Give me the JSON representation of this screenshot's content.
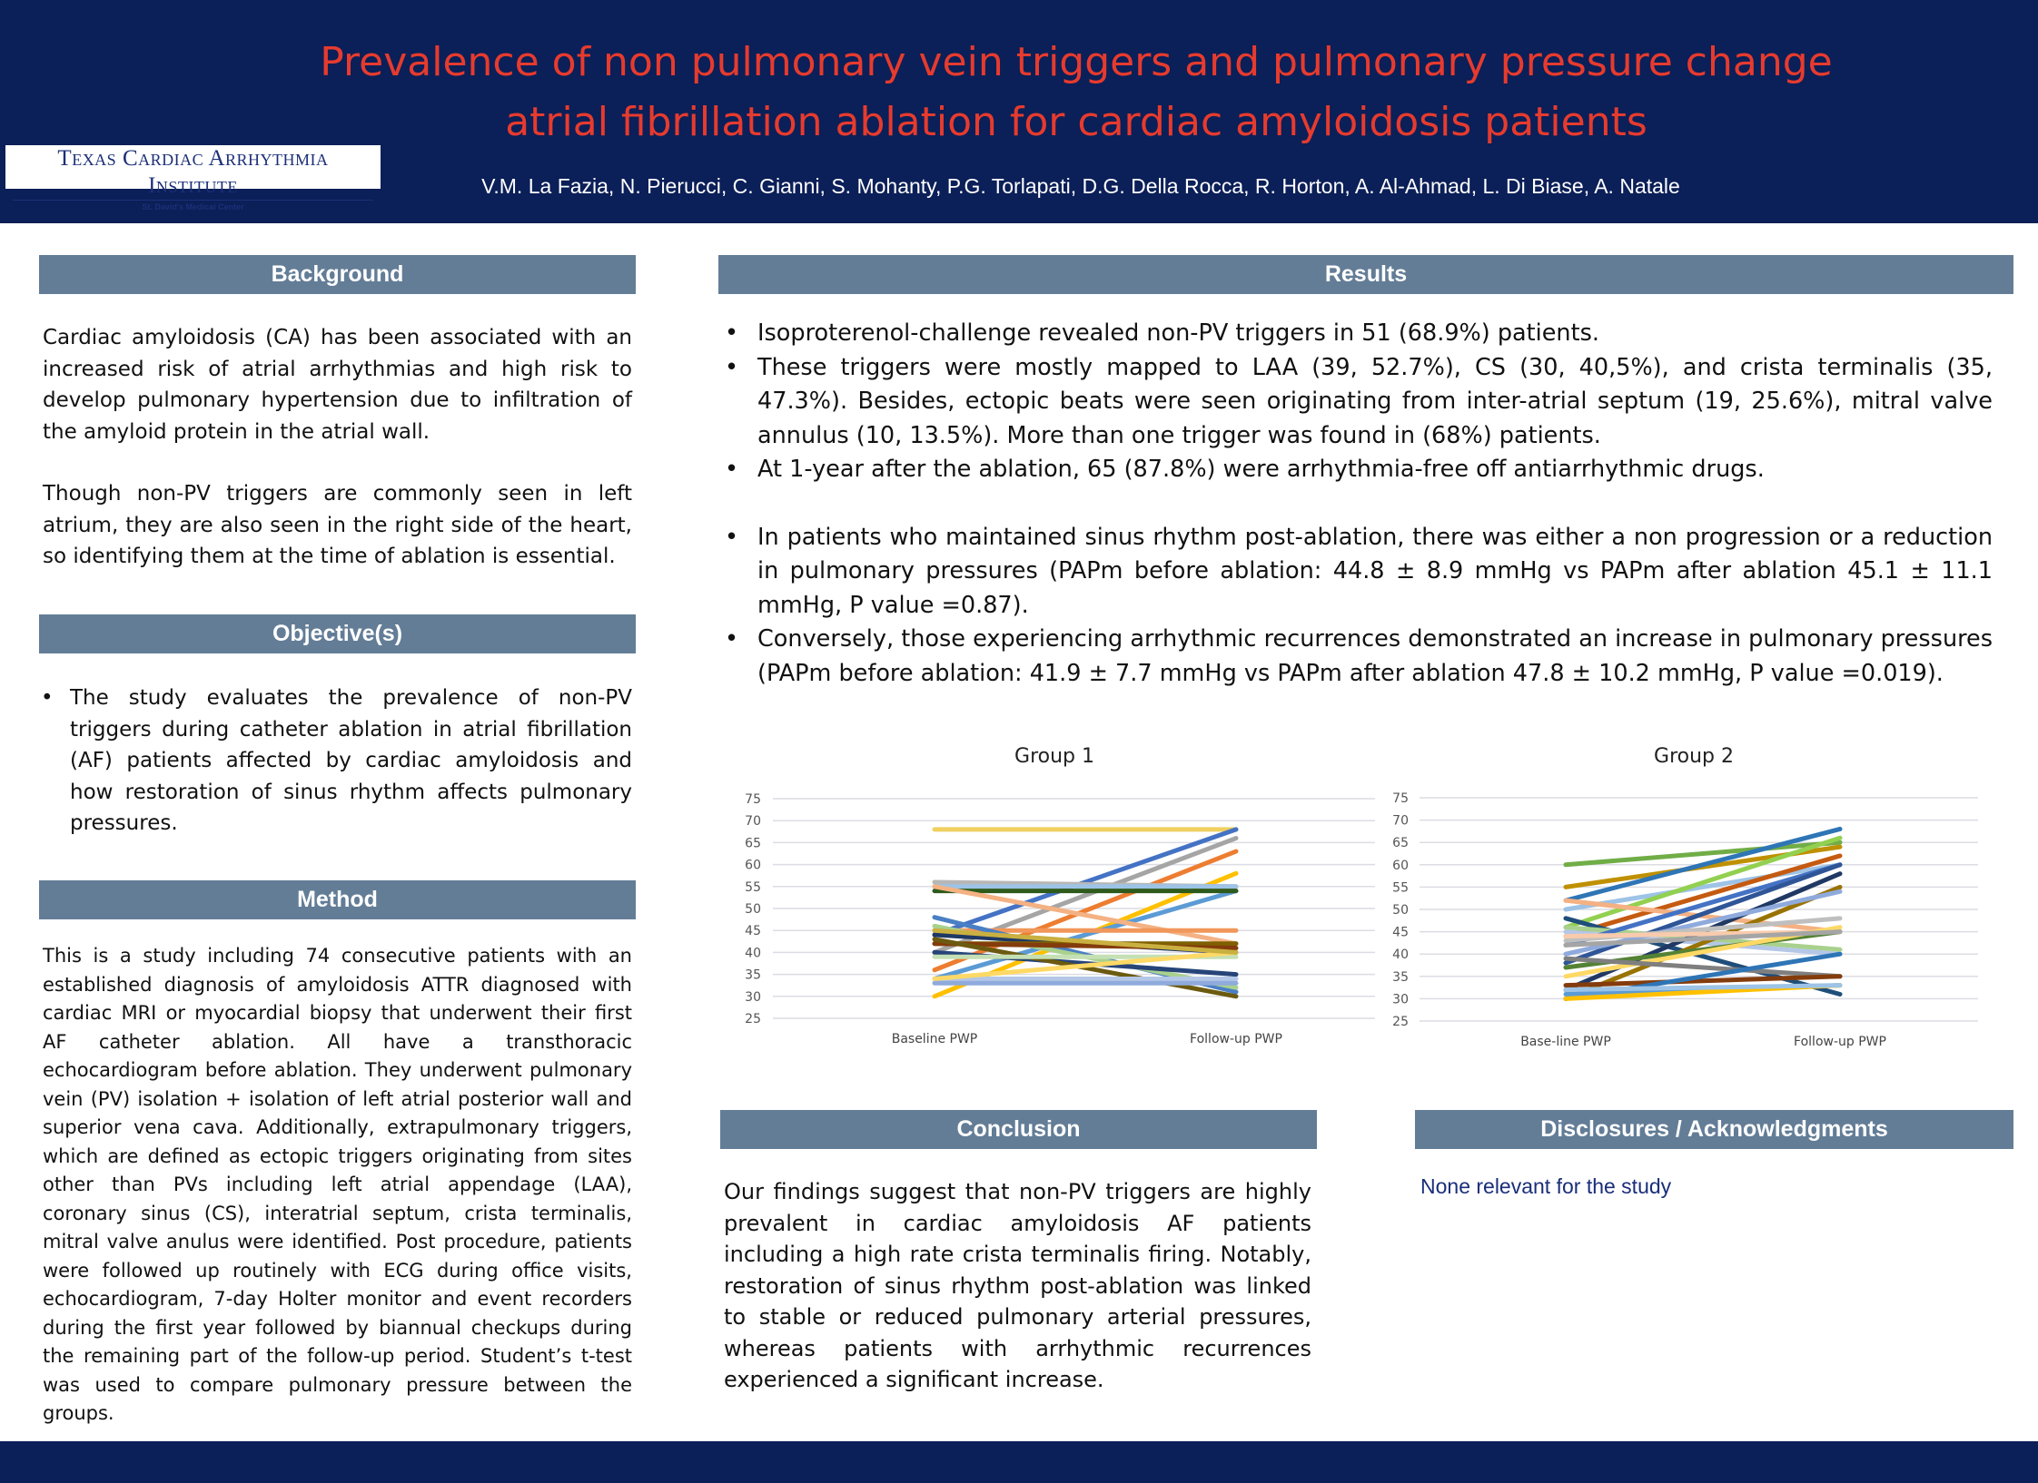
{
  "header": {
    "title_line1": "Prevalence of non pulmonary vein triggers and pulmonary pressure change",
    "title_line2": "atrial fibrillation ablation for cardiac amyloidosis patients",
    "authors": "V.M. La Fazia, N. Pierucci, C. Gianni, S. Mohanty, P.G. Torlapati, D.G. Della Rocca, R. Horton, A. Al-Ahmad, L. Di Biase, A. Natale",
    "logo_line1": "Texas Cardiac Arrhythmia Institute",
    "logo_line2": "St. David's Medical Center"
  },
  "background": {
    "heading": "Background",
    "p1": "Cardiac amyloidosis (CA) has been associated with an increased risk of atrial arrhythmias and high risk to develop pulmonary hypertension due to infiltration of the amyloid protein in the atrial wall.",
    "p2": "Though non-PV triggers are commonly seen in left atrium, they are also seen in the right side of the heart, so identifying them at the time of ablation is essential."
  },
  "objective": {
    "heading": "Objective(s)",
    "items": [
      "The study evaluates the prevalence of non-PV triggers during catheter ablation in atrial fibrillation (AF) patients affected by cardiac amyloidosis and how restoration of sinus rhythm affects pulmonary pressures."
    ]
  },
  "method": {
    "heading": "Method",
    "text": "This is a study including 74 consecutive patients with an established diagnosis of amyloidosis ATTR diagnosed with cardiac MRI or myocardial biopsy that underwent their first AF catheter ablation. All have a transthoracic echocardiogram before ablation. They underwent pulmonary vein (PV) isolation + isolation of left atrial posterior wall and superior vena cava. Additionally, extrapulmonary triggers, which are defined as ectopic triggers originating from sites other than PVs including left atrial appendage (LAA), coronary sinus (CS), interatrial septum, crista terminalis, mitral valve anulus were identified.  Post procedure, patients were followed up routinely with ECG during office visits, echocardiogram, 7-day Holter monitor and event recorders during the first year followed by biannual checkups during the remaining part of the follow-up period. Student’s t-test was used to compare pulmonary pressure between the groups."
  },
  "results": {
    "heading": "Results",
    "items": [
      "Isoproterenol-challenge revealed non-PV triggers in 51 (68.9%) patients.",
      "These triggers were mostly mapped to LAA (39, 52.7%), CS (30, 40,5%), and crista terminalis (35, 47.3%). Besides, ectopic beats were seen originating from inter-atrial septum (19, 25.6%), mitral valve annulus (10, 13.5%). More than one trigger was found in (68%) patients.",
      "At 1-year after the ablation, 65 (87.8%) were arrhythmia-free off antiarrhythmic drugs.",
      "In patients who maintained sinus rhythm post-ablation, there was either a non progression or a reduction in pulmonary pressures (PAPm before ablation: 44.8 ± 8.9 mmHg vs PAPm after ablation 45.1 ± 11.1 mmHg, P value =0.87).",
      "Conversely, those experiencing arrhythmic recurrences demonstrated an increase in pulmonary pressures (PAPm before ablation: 41.9 ± 7.7 mmHg vs PAPm after ablation 47.8 ± 10.2 mmHg, P value =0.019)."
    ]
  },
  "chart_data": [
    {
      "type": "line",
      "title": "Group 1",
      "categories": [
        "Baseline PWP",
        "Follow-up PWP"
      ],
      "ylim": [
        25,
        75
      ],
      "yticks": [
        "75",
        "70",
        "65",
        "60",
        "55",
        "50",
        "45",
        "40",
        "35",
        "30",
        "25"
      ],
      "grid": true,
      "colors": [
        "#4472c4",
        "#ed7d31",
        "#a5a5a5",
        "#ffc000",
        "#5b9bd5",
        "#70ad47",
        "#264478",
        "#9e480e",
        "#636363",
        "#997300",
        "#255e91",
        "#43682b",
        "#698ed0",
        "#f1975a",
        "#b7b7b7",
        "#ffcd33",
        "#7cafdd",
        "#8cc168"
      ],
      "series": [
        [
          68,
          68
        ],
        [
          44,
          68
        ],
        [
          40,
          66
        ],
        [
          36,
          63
        ],
        [
          30,
          58
        ],
        [
          34,
          54
        ],
        [
          56,
          55
        ],
        [
          55,
          55
        ],
        [
          54,
          54
        ],
        [
          55,
          42
        ],
        [
          45,
          45
        ],
        [
          48,
          31
        ],
        [
          46,
          32
        ],
        [
          44,
          40
        ],
        [
          42,
          42
        ],
        [
          42,
          41
        ],
        [
          40,
          35
        ],
        [
          43,
          30
        ],
        [
          34,
          34
        ],
        [
          33,
          33
        ],
        [
          39,
          39
        ],
        [
          34,
          40
        ],
        [
          45,
          40
        ]
      ],
      "series_colors": [
        "#f0d060",
        "#4472c4",
        "#a5a5a5",
        "#ed7d31",
        "#ffc000",
        "#5b9bd5",
        "#b7b7b7",
        "#9dc3e6",
        "#2e5a1c",
        "#f4b183",
        "#f1975a",
        "#4a7fc4",
        "#a9d18e",
        "#1f3864",
        "#7f6000",
        "#843c0c",
        "#264478",
        "#6b5a10",
        "#b4c7e7",
        "#8faadc",
        "#c5e0b4",
        "#ffd966",
        "#c9b040"
      ]
    },
    {
      "type": "line",
      "title": "Group 2",
      "categories": [
        "Base-line PWP",
        "Follow-up PWP"
      ],
      "ylim": [
        25,
        75
      ],
      "yticks": [
        "75",
        "70",
        "65",
        "60",
        "55",
        "50",
        "45",
        "40",
        "35",
        "30",
        "25"
      ],
      "grid": true,
      "series": [
        [
          60,
          65
        ],
        [
          55,
          64
        ],
        [
          52,
          68
        ],
        [
          50,
          60
        ],
        [
          46,
          66
        ],
        [
          44,
          62
        ],
        [
          52,
          45
        ],
        [
          48,
          31
        ],
        [
          45,
          40
        ],
        [
          46,
          41
        ],
        [
          42,
          60
        ],
        [
          38,
          60
        ],
        [
          32,
          58
        ],
        [
          30,
          55
        ],
        [
          40,
          54
        ],
        [
          43,
          48
        ],
        [
          44,
          45
        ],
        [
          37,
          45
        ],
        [
          35,
          46
        ],
        [
          39,
          35
        ],
        [
          33,
          35
        ],
        [
          30,
          40
        ],
        [
          31,
          33
        ],
        [
          30,
          33
        ],
        [
          32,
          33
        ],
        [
          42,
          45
        ]
      ],
      "series_colors": [
        "#70ad47",
        "#bf9000",
        "#2e75b6",
        "#9dc3e6",
        "#92d050",
        "#c55a11",
        "#f4b183",
        "#1f4e79",
        "#b4c7e7",
        "#a9d18e",
        "#4472c4",
        "#2f5597",
        "#203864",
        "#997300",
        "#8faadc",
        "#bfbfbf",
        "#f8cbad",
        "#548235",
        "#ffd966",
        "#7f7f7f",
        "#843c0c",
        "#2e75b6",
        "#5b9bd5",
        "#ffc000",
        "#9dc3e6",
        "#a5a5a5"
      ]
    }
  ],
  "conclusion": {
    "heading": "Conclusion",
    "text": "Our findings suggest that non-PV triggers are highly prevalent in cardiac amyloidosis AF patients including a high rate crista terminalis firing. Notably, restoration of sinus rhythm post-ablation was linked to stable or reduced pulmonary arterial pressures, whereas patients with arrhythmic recurrences experienced a significant increase."
  },
  "disclosures": {
    "heading": "Disclosures / Acknowledgments",
    "text": "None relevant for the study"
  },
  "colors": {
    "header_bg": "#0b1f58",
    "title": "#e63b2e",
    "section_header": "#637d97"
  }
}
